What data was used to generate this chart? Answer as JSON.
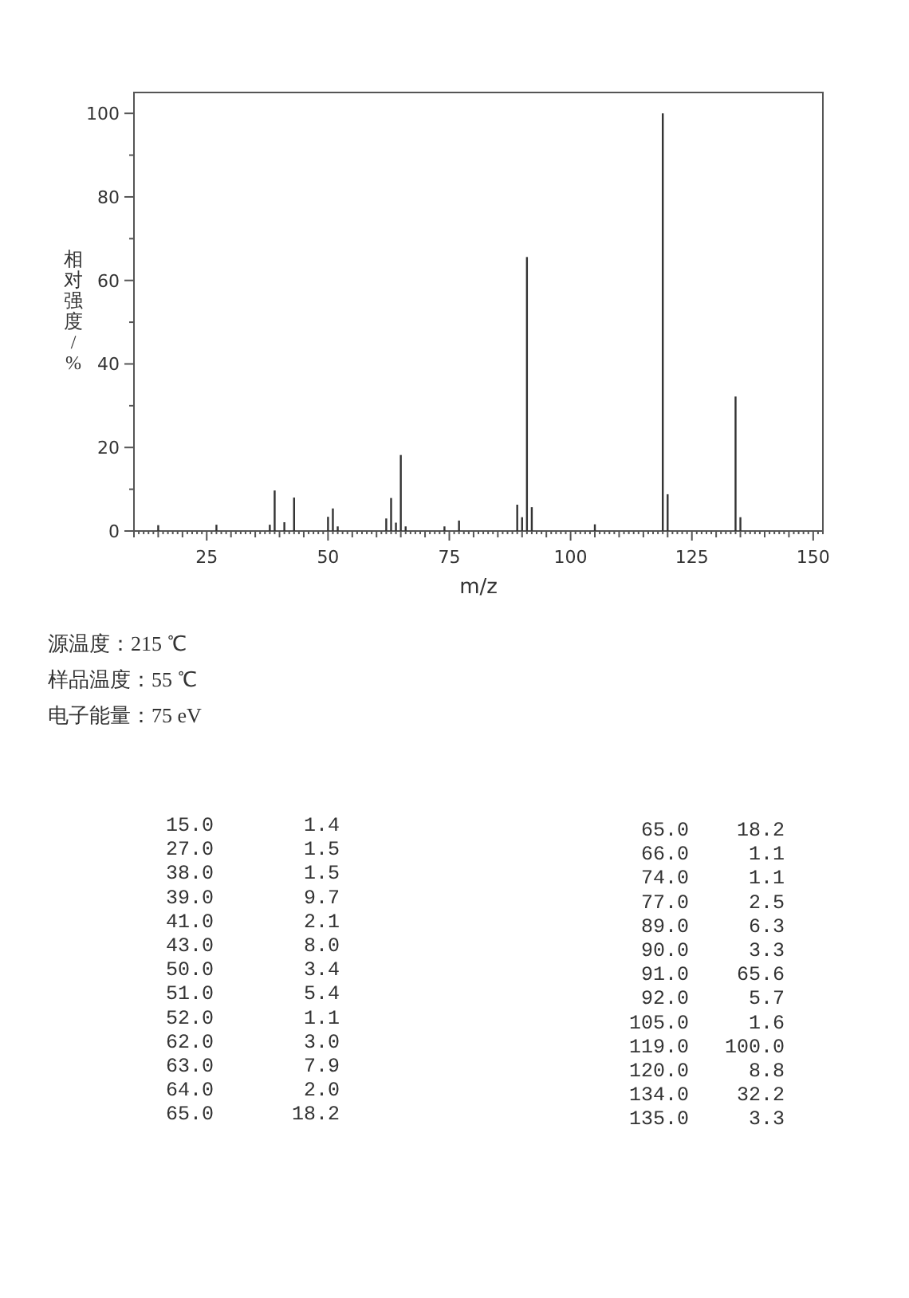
{
  "chart_data": [
    {
      "type": "bar",
      "xlabel": "m/z",
      "ylabel": "相对强度/%",
      "x": [
        15,
        27,
        38,
        39,
        41,
        43,
        50,
        51,
        52,
        62,
        63,
        64,
        65,
        66,
        74,
        77,
        89,
        90,
        91,
        92,
        105,
        119,
        120,
        134,
        135
      ],
      "values": [
        1.4,
        1.5,
        1.5,
        9.7,
        2.1,
        8.0,
        3.4,
        5.4,
        1.1,
        3.0,
        7.9,
        2.0,
        18.2,
        1.1,
        1.1,
        2.5,
        6.3,
        3.3,
        65.6,
        5.7,
        1.6,
        100.0,
        8.8,
        32.2,
        3.3
      ],
      "color": "#333333",
      "xlim": [
        10,
        152
      ],
      "xticks": [
        25,
        50,
        75,
        100,
        125,
        150
      ],
      "ylim": [
        0,
        105
      ],
      "yticks": [
        0,
        {
          "value": 10,
          "label": null
        },
        20,
        {
          "value": 30,
          "label": null
        },
        40,
        {
          "value": 50,
          "label": null
        },
        60,
        {
          "value": 70,
          "label": null
        },
        80,
        {
          "value": 90,
          "label": null
        },
        100
      ],
      "annotations": [
        "源温度：215 ℃",
        "样品温度：55 ℃",
        "电子能量：75 eV"
      ]
    },
    {
      "type": "other",
      "annotations": [
        "15.0",
        "1.4",
        "27.0",
        "1.5",
        "38.0",
        "1.5",
        "39.0",
        "9.7",
        "41.0",
        "2.1",
        "43.0",
        "8.0",
        "50.0",
        "3.4",
        "51.0",
        "5.4",
        "52.0",
        "1.1",
        "62.0",
        "3.0",
        "63.0",
        "7.9",
        "64.0",
        "2.0",
        "65.0",
        "18.2",
        "65.0",
        "18.2",
        "66.0",
        "1.1",
        "74.0",
        "1.1",
        "77.0",
        "2.5",
        "89.0",
        "6.3",
        "90.0",
        "3.3",
        "91.0",
        "65.6",
        "92.0",
        "5.7",
        "105.0",
        "1.6",
        "119.0",
        "100.0",
        "120.0",
        "8.8",
        "134.0",
        "32.2",
        "135.0",
        "3.3"
      ]
    }
  ]
}
